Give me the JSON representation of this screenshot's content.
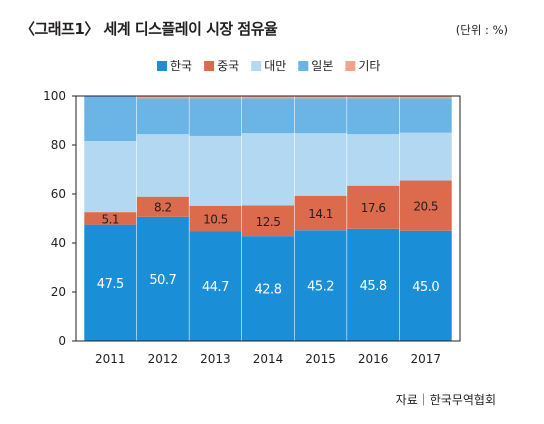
{
  "title": "〈그래프1〉 세계 디스플레이 시장 점유율",
  "unit": "(단위 : %)",
  "source": "자료｜한국무역협회",
  "chart_data": {
    "type": "bar",
    "stacked": true,
    "title": "〈그래프1〉 세계 디스플레이 시장 점유율",
    "xlabel": "",
    "ylabel": "",
    "ylim": [
      0,
      100
    ],
    "yticks": [
      "0",
      "20",
      "40",
      "60",
      "80",
      "100"
    ],
    "categories": [
      "2011",
      "2012",
      "2013",
      "2014",
      "2015",
      "2016",
      "2017"
    ],
    "legend_position": "top",
    "series": [
      {
        "name": "한국",
        "color": "#1a8fd8",
        "values": [
          47.5,
          50.7,
          44.7,
          42.8,
          45.2,
          45.8,
          45.0
        ],
        "labels": [
          "47.5",
          "50.7",
          "44.7",
          "42.8",
          "45.2",
          "45.8",
          "45.0"
        ]
      },
      {
        "name": "중국",
        "color": "#dc6b4e",
        "values": [
          5.1,
          8.2,
          10.5,
          12.5,
          14.1,
          17.6,
          20.5
        ],
        "labels": [
          "5.1",
          "8.2",
          "10.5",
          "12.5",
          "14.1",
          "17.6",
          "20.5"
        ]
      },
      {
        "name": "대만",
        "color": "#b3d9f2",
        "values": [
          29.0,
          25.5,
          28.5,
          29.5,
          25.5,
          21.0,
          19.5
        ]
      },
      {
        "name": "일본",
        "color": "#6ab4e6",
        "values": [
          18.4,
          14.6,
          15.3,
          14.2,
          14.2,
          14.6,
          14.0
        ]
      },
      {
        "name": "기타",
        "color": "#f2a38e",
        "values": [
          0.0,
          1.0,
          1.0,
          1.0,
          1.0,
          1.0,
          1.0
        ]
      }
    ]
  }
}
